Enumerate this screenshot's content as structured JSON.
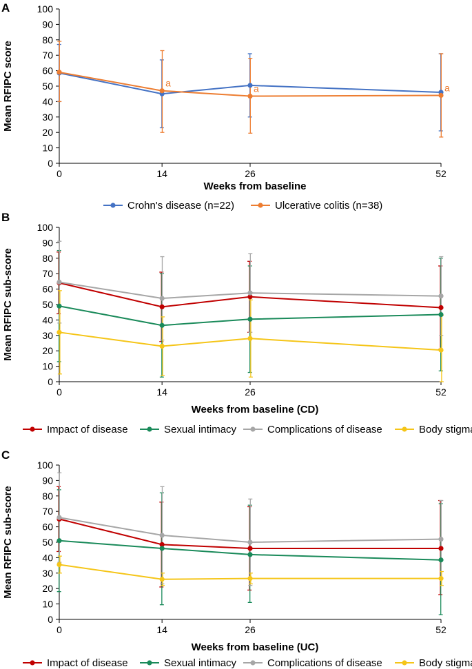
{
  "chart_data": [
    {
      "panel": "A",
      "type": "line",
      "xlabel": "Weeks from baseline",
      "ylabel": "Mean RFIPC score",
      "x": [
        0,
        14,
        26,
        52
      ],
      "xticks": [
        "0",
        "14",
        "26",
        "52"
      ],
      "ylim": [
        0,
        100
      ],
      "yticks": [
        "0",
        "10",
        "20",
        "30",
        "40",
        "50",
        "60",
        "70",
        "80",
        "90",
        "100"
      ],
      "series": [
        {
          "name": "Crohn's disease (n=22)",
          "color": "#4472C4",
          "values": [
            58.5,
            45,
            50.5,
            46
          ],
          "err_low": [
            40,
            23,
            30,
            21
          ],
          "err_high": [
            77,
            67,
            71,
            71
          ]
        },
        {
          "name": "Ulcerative colitis (n=38)",
          "color": "#ED7D31",
          "values": [
            59,
            47,
            43.5,
            44
          ],
          "err_low": [
            40,
            20,
            19.5,
            17
          ],
          "err_high": [
            79,
            73,
            68,
            71
          ]
        }
      ],
      "annotations": [
        {
          "label": "a",
          "series": 1,
          "point": 1
        },
        {
          "label": "a",
          "series": 1,
          "point": 2
        },
        {
          "label": "a",
          "series": 1,
          "point": 3
        }
      ]
    },
    {
      "panel": "B",
      "type": "line",
      "xlabel": "Weeks from baseline (CD)",
      "ylabel": "Mean RFIPC sub-score",
      "x": [
        0,
        14,
        26,
        52
      ],
      "xticks": [
        "0",
        "14",
        "26",
        "52"
      ],
      "ylim": [
        0,
        100
      ],
      "yticks": [
        "0",
        "10",
        "20",
        "30",
        "40",
        "50",
        "60",
        "70",
        "80",
        "90",
        "100"
      ],
      "series": [
        {
          "name": "Impact of disease",
          "color": "#C00000",
          "values": [
            64,
            48.5,
            55,
            48
          ],
          "err_low": [
            44,
            26,
            32,
            21
          ],
          "err_high": [
            84,
            71,
            78,
            75
          ]
        },
        {
          "name": "Sexual intimacy",
          "color": "#1A8A5A",
          "values": [
            49,
            36.5,
            40.5,
            43.5
          ],
          "err_low": [
            13,
            3,
            6,
            7
          ],
          "err_high": [
            85,
            70,
            75,
            80
          ]
        },
        {
          "name": "Complications of disease",
          "color": "#A6A6A6",
          "values": [
            64.5,
            54,
            57.5,
            55.5
          ],
          "err_low": [
            38,
            27,
            32,
            30
          ],
          "err_high": [
            91,
            81,
            83,
            81
          ]
        },
        {
          "name": "Body stigma",
          "color": "#F5C518",
          "values": [
            32,
            23,
            28,
            20.5
          ],
          "err_low": [
            5,
            4,
            3,
            0
          ],
          "err_high": [
            59,
            42,
            53,
            43
          ]
        }
      ]
    },
    {
      "panel": "C",
      "type": "line",
      "xlabel": "Weeks from baseline (UC)",
      "ylabel": "Mean RFIPC sub-score",
      "x": [
        0,
        14,
        26,
        52
      ],
      "xticks": [
        "0",
        "14",
        "26",
        "52"
      ],
      "ylim": [
        0,
        100
      ],
      "yticks": [
        "0",
        "10",
        "20",
        "30",
        "40",
        "50",
        "60",
        "70",
        "80",
        "90",
        "100"
      ],
      "series": [
        {
          "name": "Impact of disease",
          "color": "#C00000",
          "values": [
            65,
            48.5,
            46,
            46
          ],
          "err_low": [
            44,
            21,
            19,
            16
          ],
          "err_high": [
            86,
            76,
            73,
            77
          ]
        },
        {
          "name": "Sexual intimacy",
          "color": "#1A8A5A",
          "values": [
            51,
            46,
            42,
            38.5
          ],
          "err_low": [
            18,
            9.5,
            11,
            3
          ],
          "err_high": [
            84,
            82,
            74,
            75
          ]
        },
        {
          "name": "Complications of disease",
          "color": "#A6A6A6",
          "values": [
            66,
            54.5,
            50,
            52
          ],
          "err_low": [
            37,
            23,
            22,
            27
          ],
          "err_high": [
            95,
            86,
            78,
            77
          ]
        },
        {
          "name": "Body stigma",
          "color": "#F5C518",
          "values": [
            35.5,
            26,
            26.5,
            26.5
          ],
          "err_low": [
            30,
            22,
            23,
            22
          ],
          "err_high": [
            41,
            30,
            30,
            31
          ]
        }
      ]
    }
  ]
}
